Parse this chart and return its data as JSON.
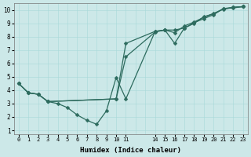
{
  "xlabel": "Humidex (Indice chaleur)",
  "bg_color": "#cce8e8",
  "line_color": "#2d6b5e",
  "markersize": 2.5,
  "linewidth": 0.9,
  "xlim": [
    -0.5,
    23.5
  ],
  "ylim": [
    0.7,
    10.5
  ],
  "xtick_positions": [
    0,
    1,
    2,
    3,
    4,
    5,
    6,
    7,
    8,
    9,
    10,
    11,
    14,
    15,
    16,
    17,
    18,
    19,
    20,
    21,
    22,
    23
  ],
  "xtick_labels": [
    "0",
    "1",
    "2",
    "3",
    "4",
    "5",
    "6",
    "7",
    "8",
    "9",
    "10",
    "11",
    "14",
    "15",
    "16",
    "17",
    "18",
    "19",
    "20",
    "21",
    "22",
    "23"
  ],
  "yticks": [
    1,
    2,
    3,
    4,
    5,
    6,
    7,
    8,
    9,
    10
  ],
  "line1_x": [
    0,
    1,
    2,
    3,
    4,
    5,
    6,
    7,
    8,
    9,
    10,
    11,
    14,
    15,
    16,
    17,
    18,
    19,
    20,
    21,
    22,
    23
  ],
  "line1_y": [
    4.5,
    3.8,
    3.7,
    3.15,
    3.0,
    2.7,
    2.15,
    1.75,
    1.45,
    2.45,
    4.95,
    3.35,
    8.4,
    8.5,
    8.5,
    8.65,
    9.0,
    9.5,
    9.7,
    10.1,
    10.2,
    10.25
  ],
  "line2_x": [
    0,
    1,
    2,
    3,
    10,
    11,
    14,
    15,
    16,
    17,
    18,
    19,
    20,
    21,
    22,
    23
  ],
  "line2_y": [
    4.5,
    3.8,
    3.7,
    3.15,
    3.35,
    6.5,
    8.35,
    8.5,
    7.5,
    8.65,
    9.05,
    9.35,
    9.65,
    10.1,
    10.15,
    10.25
  ],
  "line3_x": [
    0,
    1,
    2,
    3,
    10,
    11,
    14,
    15,
    16,
    17,
    18,
    19,
    20,
    21,
    22,
    23
  ],
  "line3_y": [
    4.5,
    3.8,
    3.7,
    3.15,
    3.35,
    7.5,
    8.4,
    8.5,
    8.3,
    8.8,
    9.1,
    9.45,
    9.75,
    10.05,
    10.2,
    10.25
  ]
}
